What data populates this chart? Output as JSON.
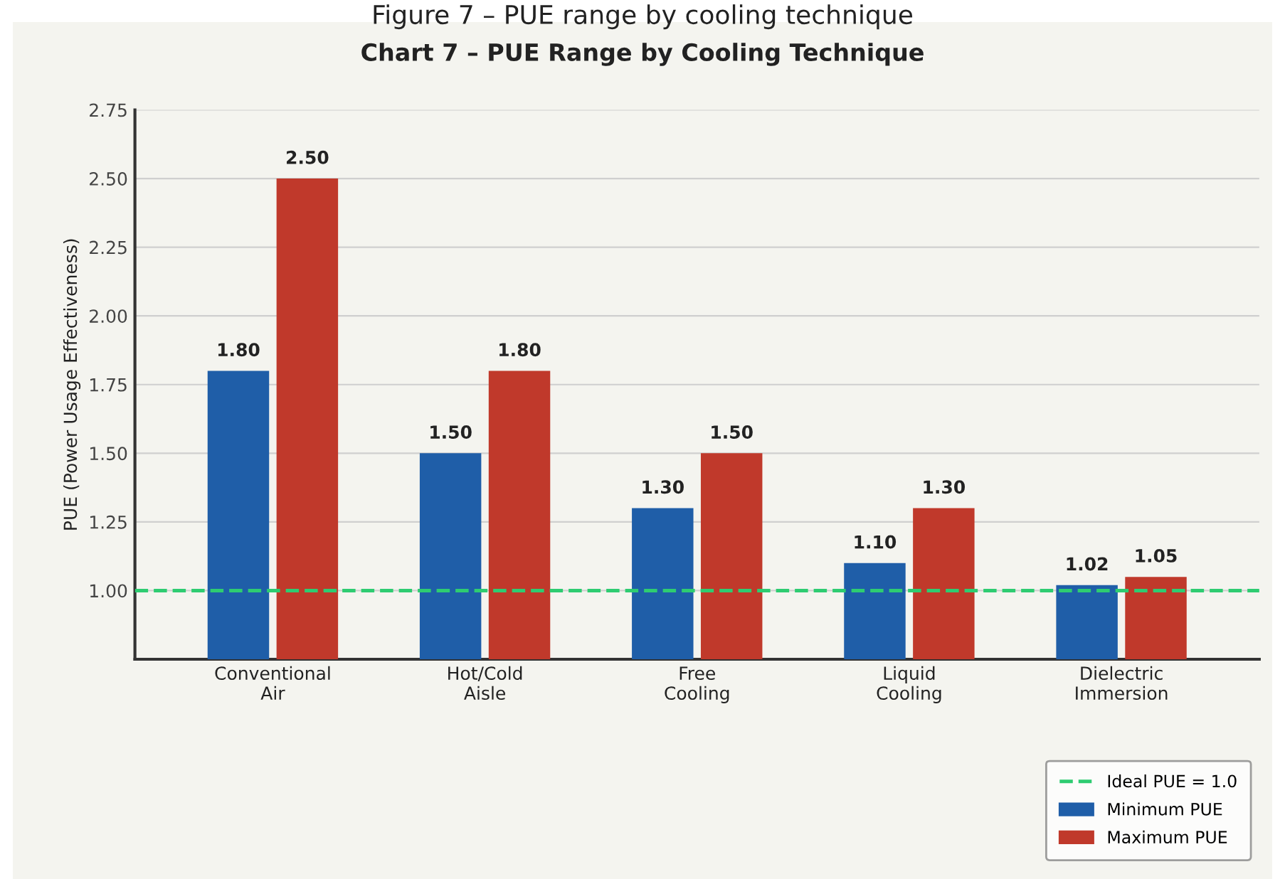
{
  "chart_data": {
    "type": "bar",
    "title": "Chart 7 – PUE Range by Cooling Technique",
    "ylabel": "PUE (Power Usage Effectiveness)",
    "annotations": [
      "Figure 7 – PUE range by cooling technique"
    ],
    "categories": [
      "Conventional\nAir",
      "Hot/Cold\nAisle",
      "Free\nCooling",
      "Liquid\nCooling",
      "Dielectric\nImmersion"
    ],
    "series": [
      {
        "name": "Minimum PUE",
        "color": "#1f5ea8",
        "values": [
          1.8,
          1.5,
          1.3,
          1.1,
          1.02
        ],
        "value_labels": [
          "1.80",
          "1.50",
          "1.30",
          "1.10",
          "1.02"
        ]
      },
      {
        "name": "Maximum PUE",
        "color": "#c0392b",
        "values": [
          2.5,
          1.8,
          1.5,
          1.3,
          1.05
        ],
        "value_labels": [
          "2.50",
          "1.80",
          "1.50",
          "1.30",
          "1.05"
        ]
      }
    ],
    "ylim": [
      0.75,
      2.75
    ],
    "yticks": [
      {
        "value": 1.0,
        "label": "1.00"
      },
      {
        "value": 1.25,
        "label": "1.25"
      },
      {
        "value": 1.5,
        "label": "1.50"
      },
      {
        "value": 1.75,
        "label": "1.75"
      },
      {
        "value": 2.0,
        "label": "2.00"
      },
      {
        "value": 2.25,
        "label": "2.25"
      },
      {
        "value": 2.5,
        "label": "2.50"
      },
      {
        "value": 2.75,
        "label": "2.75"
      }
    ],
    "ref_lines": [
      {
        "axis": "y",
        "value": 1.0,
        "label": "Ideal PUE = 1.0",
        "color": "#2ecc71",
        "line_style": "dashed"
      }
    ],
    "grid": "y",
    "legend": "bottom right"
  }
}
